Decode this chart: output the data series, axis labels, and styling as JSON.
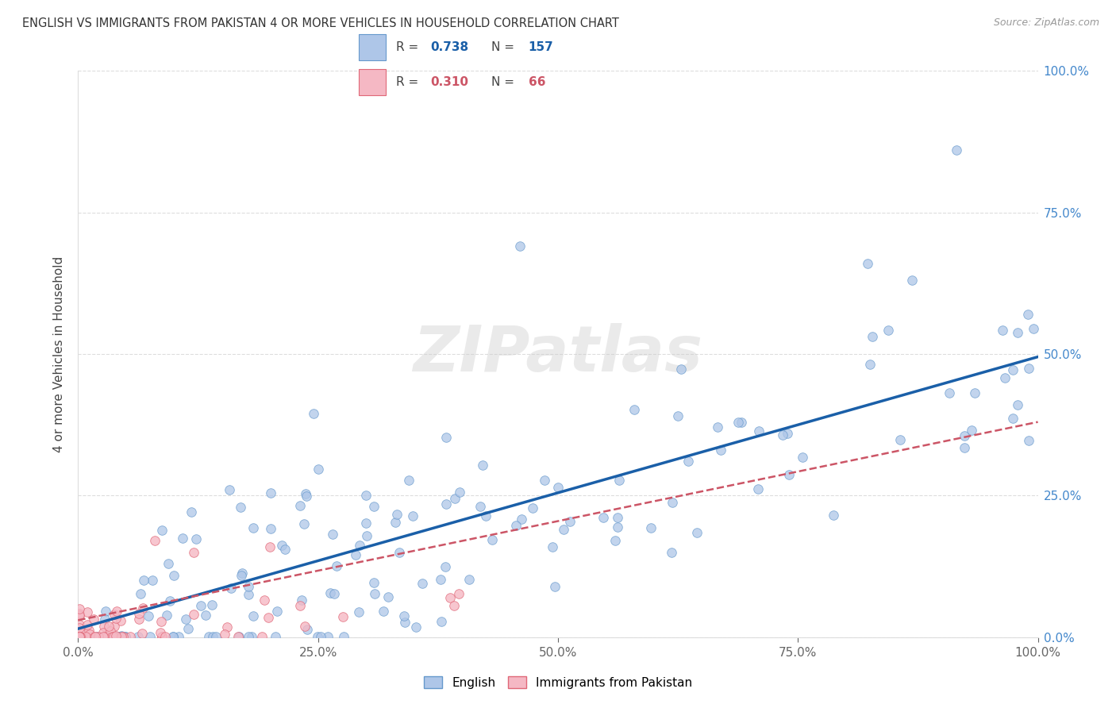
{
  "title": "ENGLISH VS IMMIGRANTS FROM PAKISTAN 4 OR MORE VEHICLES IN HOUSEHOLD CORRELATION CHART",
  "source": "Source: ZipAtlas.com",
  "ylabel": "4 or more Vehicles in Household",
  "english_R": 0.738,
  "english_N": 157,
  "pakistan_R": 0.31,
  "pakistan_N": 66,
  "english_color": "#aec6e8",
  "english_edge_color": "#6699cc",
  "pakistan_color": "#f5b8c4",
  "pakistan_edge_color": "#e06878",
  "english_line_color": "#1a5fa8",
  "pakistan_line_color": "#cc5566",
  "pakistan_line_style": "--",
  "watermark": "ZIPatlas",
  "background_color": "#ffffff",
  "grid_color": "#dddddd",
  "tick_color": "#4488cc",
  "title_color": "#333333",
  "source_color": "#999999",
  "ylabel_color": "#444444",
  "xlim": [
    0.0,
    1.0
  ],
  "ylim": [
    0.0,
    1.0
  ],
  "xtick_vals": [
    0.0,
    0.25,
    0.5,
    0.75,
    1.0
  ],
  "xtick_labels": [
    "0.0%",
    "25.0%",
    "50.0%",
    "75.0%",
    "100.0%"
  ],
  "ytick_vals": [
    0.0,
    0.25,
    0.5,
    0.75,
    1.0
  ],
  "ytick_labels": [
    "0.0%",
    "25.0%",
    "50.0%",
    "75.0%",
    "100.0%"
  ]
}
